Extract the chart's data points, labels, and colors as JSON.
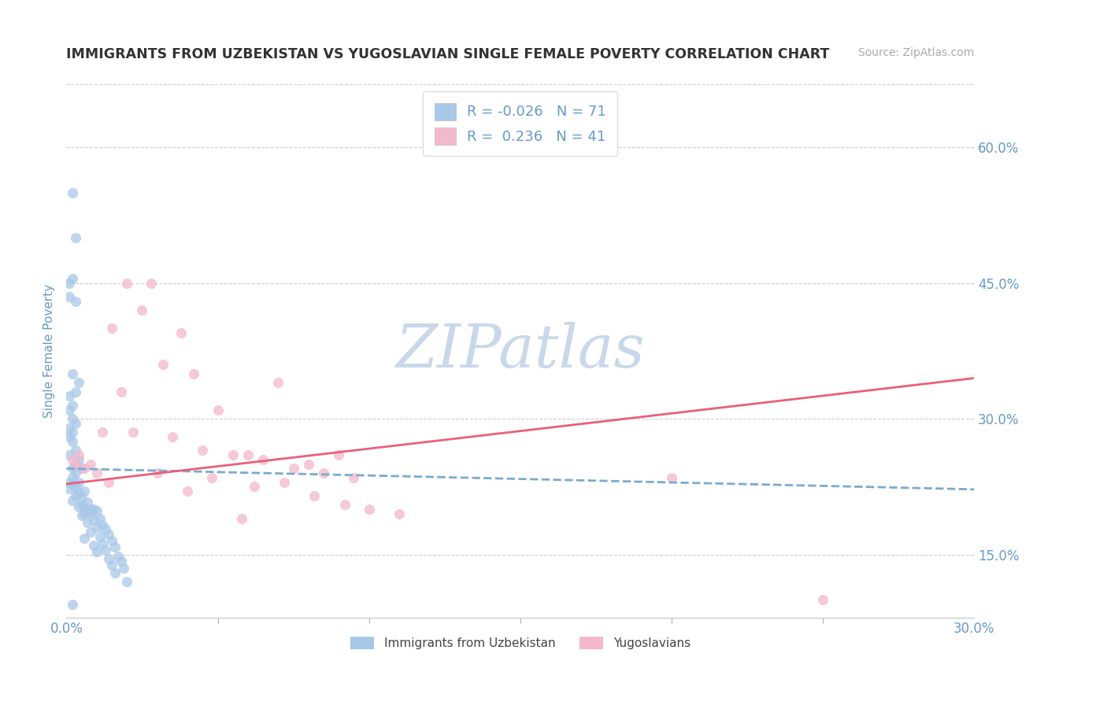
{
  "title": "IMMIGRANTS FROM UZBEKISTAN VS YUGOSLAVIAN SINGLE FEMALE POVERTY CORRELATION CHART",
  "source_text": "Source: ZipAtlas.com",
  "ylabel": "Single Female Poverty",
  "xlim": [
    0.0,
    0.3
  ],
  "ylim": [
    0.08,
    0.67
  ],
  "yticks": [
    0.15,
    0.3,
    0.45,
    0.6
  ],
  "ytick_labels": [
    "15.0%",
    "30.0%",
    "45.0%",
    "60.0%"
  ],
  "xtick_positions": [
    0.0,
    0.3
  ],
  "xtick_labels": [
    "0.0%",
    "30.0%"
  ],
  "blue_R": -0.026,
  "blue_N": 71,
  "pink_R": 0.236,
  "pink_N": 41,
  "blue_color": "#a8c8e8",
  "pink_color": "#f4b8cc",
  "blue_line_color": "#7aaad0",
  "pink_line_color": "#e8607a",
  "legend_label_blue": "Immigrants from Uzbekistan",
  "legend_label_pink": "Yugoslavians",
  "watermark": "ZIPatlas",
  "watermark_color": "#c8d8ea",
  "title_color": "#333333",
  "tick_label_color": "#6699cc",
  "axis_label_color": "#6699cc",
  "grid_color": "#cccccc",
  "background_color": "#ffffff",
  "blue_trend_x": [
    0.0,
    0.3
  ],
  "blue_trend_y": [
    0.245,
    0.222
  ],
  "pink_trend_x": [
    0.0,
    0.3
  ],
  "pink_trend_y": [
    0.228,
    0.345
  ],
  "blue_x": [
    0.002,
    0.003,
    0.001,
    0.002,
    0.001,
    0.003,
    0.002,
    0.004,
    0.003,
    0.001,
    0.002,
    0.001,
    0.002,
    0.003,
    0.001,
    0.002,
    0.001,
    0.002,
    0.003,
    0.001,
    0.004,
    0.003,
    0.002,
    0.005,
    0.003,
    0.002,
    0.001,
    0.004,
    0.002,
    0.003,
    0.001,
    0.006,
    0.004,
    0.003,
    0.005,
    0.002,
    0.007,
    0.005,
    0.004,
    0.006,
    0.008,
    0.009,
    0.007,
    0.01,
    0.008,
    0.006,
    0.005,
    0.011,
    0.009,
    0.007,
    0.012,
    0.01,
    0.013,
    0.008,
    0.014,
    0.011,
    0.006,
    0.015,
    0.012,
    0.009,
    0.016,
    0.013,
    0.01,
    0.017,
    0.014,
    0.018,
    0.015,
    0.019,
    0.016,
    0.02,
    0.002
  ],
  "blue_y": [
    0.55,
    0.5,
    0.45,
    0.455,
    0.435,
    0.43,
    0.35,
    0.34,
    0.33,
    0.325,
    0.315,
    0.31,
    0.3,
    0.295,
    0.29,
    0.285,
    0.28,
    0.275,
    0.265,
    0.26,
    0.255,
    0.25,
    0.245,
    0.245,
    0.24,
    0.235,
    0.23,
    0.23,
    0.228,
    0.225,
    0.223,
    0.22,
    0.218,
    0.215,
    0.212,
    0.21,
    0.208,
    0.205,
    0.203,
    0.2,
    0.2,
    0.2,
    0.198,
    0.198,
    0.195,
    0.195,
    0.193,
    0.19,
    0.188,
    0.185,
    0.183,
    0.18,
    0.178,
    0.175,
    0.172,
    0.17,
    0.168,
    0.165,
    0.162,
    0.16,
    0.158,
    0.155,
    0.153,
    0.148,
    0.145,
    0.143,
    0.138,
    0.135,
    0.13,
    0.12,
    0.095
  ],
  "pink_x": [
    0.002,
    0.004,
    0.015,
    0.02,
    0.028,
    0.038,
    0.003,
    0.006,
    0.012,
    0.018,
    0.025,
    0.032,
    0.042,
    0.05,
    0.06,
    0.07,
    0.08,
    0.09,
    0.008,
    0.022,
    0.035,
    0.045,
    0.055,
    0.065,
    0.075,
    0.085,
    0.095,
    0.01,
    0.03,
    0.048,
    0.062,
    0.072,
    0.082,
    0.092,
    0.1,
    0.11,
    0.014,
    0.04,
    0.058,
    0.2,
    0.25
  ],
  "pink_y": [
    0.255,
    0.26,
    0.4,
    0.45,
    0.45,
    0.395,
    0.25,
    0.245,
    0.285,
    0.33,
    0.42,
    0.36,
    0.35,
    0.31,
    0.26,
    0.34,
    0.25,
    0.26,
    0.25,
    0.285,
    0.28,
    0.265,
    0.26,
    0.255,
    0.245,
    0.24,
    0.235,
    0.24,
    0.24,
    0.235,
    0.225,
    0.23,
    0.215,
    0.205,
    0.2,
    0.195,
    0.23,
    0.22,
    0.19,
    0.235,
    0.1
  ]
}
